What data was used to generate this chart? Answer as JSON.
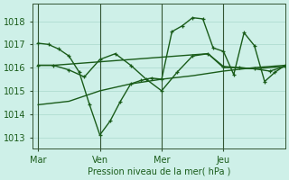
{
  "bg_color": "#cef0e8",
  "grid_color": "#aad8cc",
  "line_color": "#1a5c1a",
  "marker_color": "#1a5c1a",
  "xlabel": "Pression niveau de la mer( hPa )",
  "xlabel_color": "#1a5c1a",
  "tick_label_color": "#1a5c1a",
  "ylim": [
    1012.5,
    1018.75
  ],
  "yticks": [
    1013,
    1014,
    1015,
    1016,
    1017,
    1018
  ],
  "day_labels": [
    "Mar",
    "Ven",
    "Mer",
    "Jeu"
  ],
  "day_positions": [
    0,
    24,
    48,
    72
  ],
  "vline_positions": [
    0,
    24,
    48,
    72
  ],
  "xlim": [
    -2,
    96
  ],
  "series": [
    {
      "x": [
        0,
        6,
        12,
        18,
        24,
        30,
        36,
        42,
        48,
        54,
        60,
        66,
        72,
        78,
        84,
        90,
        96
      ],
      "y": [
        1016.1,
        1016.1,
        1016.15,
        1016.2,
        1016.25,
        1016.3,
        1016.35,
        1016.4,
        1016.45,
        1016.5,
        1016.55,
        1016.6,
        1016.0,
        1016.0,
        1015.95,
        1016.0,
        1016.05
      ],
      "marker": false,
      "linewidth": 1.0
    },
    {
      "x": [
        0,
        4,
        8,
        12,
        16,
        20,
        24,
        28,
        32,
        36,
        40,
        44,
        48,
        52,
        56,
        60,
        64,
        68,
        72,
        76,
        80,
        84,
        88,
        92,
        96
      ],
      "y": [
        1017.05,
        1017.0,
        1016.8,
        1016.5,
        1015.8,
        1014.4,
        1013.1,
        1013.7,
        1014.55,
        1015.3,
        1015.45,
        1015.55,
        1015.5,
        1017.55,
        1017.8,
        1018.15,
        1018.1,
        1016.85,
        1016.7,
        1015.7,
        1017.5,
        1016.95,
        1015.4,
        1015.8,
        1016.1
      ],
      "marker": true,
      "linewidth": 1.0
    },
    {
      "x": [
        0,
        6,
        12,
        18,
        24,
        30,
        36,
        42,
        48,
        54,
        60,
        66,
        72,
        78,
        84,
        90,
        96
      ],
      "y": [
        1016.1,
        1016.1,
        1015.9,
        1015.6,
        1016.35,
        1016.6,
        1016.1,
        1015.5,
        1015.0,
        1015.8,
        1016.5,
        1016.6,
        1016.05,
        1016.0,
        1015.95,
        1015.85,
        1016.05
      ],
      "marker": true,
      "linewidth": 1.0
    },
    {
      "x": [
        0,
        12,
        24,
        36,
        48,
        60,
        72,
        84,
        96
      ],
      "y": [
        1014.4,
        1014.55,
        1015.0,
        1015.3,
        1015.5,
        1015.65,
        1015.85,
        1016.0,
        1016.1
      ],
      "marker": false,
      "linewidth": 1.0
    }
  ]
}
